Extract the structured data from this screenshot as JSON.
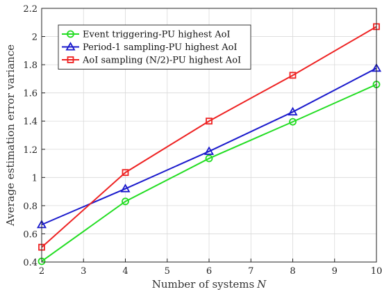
{
  "chart_data": {
    "type": "line",
    "xlabel": "Number of systems",
    "xlabel_var": "N",
    "ylabel": "Average estimation error variance",
    "xlim": [
      2,
      10
    ],
    "ylim": [
      0.4,
      2.2
    ],
    "xticks": [
      2,
      3,
      4,
      5,
      6,
      7,
      8,
      9,
      10
    ],
    "yticks": [
      0.4,
      0.6,
      0.8,
      1,
      1.2,
      1.4,
      1.6,
      1.8,
      2,
      2.2
    ],
    "ytick_labels": [
      "0.4",
      "0.6",
      "0.8",
      "1",
      "1.2",
      "1.4",
      "1.6",
      "1.8",
      "2",
      "2.2"
    ],
    "grid": true,
    "legend_position": "top-left",
    "series": [
      {
        "name": "Event triggering-PU highest AoI",
        "color": "#22dd22",
        "marker": "circle",
        "x": [
          2,
          4,
          6,
          8,
          10
        ],
        "y": [
          0.405,
          0.83,
          1.135,
          1.395,
          1.66
        ]
      },
      {
        "name": "Period-1 sampling-PU highest AoI",
        "color": "#1a1acc",
        "marker": "triangle",
        "x": [
          2,
          4,
          6,
          8,
          10
        ],
        "y": [
          0.665,
          0.92,
          1.185,
          1.465,
          1.775
        ]
      },
      {
        "name": "AoI sampling (N/2)-PU highest AoI",
        "color": "#ee2222",
        "marker": "square",
        "x": [
          2,
          4,
          6,
          8,
          10
        ],
        "y": [
          0.505,
          1.035,
          1.4,
          1.725,
          2.07
        ]
      }
    ]
  }
}
